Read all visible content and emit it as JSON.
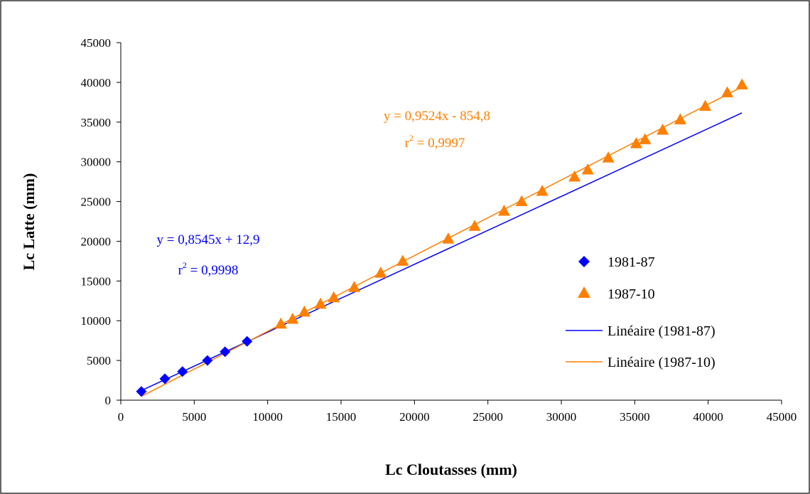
{
  "chart_data": {
    "type": "scatter",
    "xlabel": "Lc Cloutasses (mm)",
    "ylabel": "Lc Latte (mm)",
    "xlim": [
      0,
      45000
    ],
    "ylim": [
      0,
      45000
    ],
    "xticks": [
      "0",
      "5000",
      "10000",
      "15000",
      "20000",
      "25000",
      "30000",
      "35000",
      "40000",
      "45000"
    ],
    "yticks": [
      "0",
      "5000",
      "10000",
      "15000",
      "20000",
      "25000",
      "30000",
      "35000",
      "40000",
      "45000"
    ],
    "grid": false,
    "legend_position": "right",
    "series": [
      {
        "name": "1981-87",
        "marker": "diamond",
        "color": "#0000FF",
        "x": [
          1400,
          3000,
          4200,
          5900,
          7100,
          8600
        ],
        "y": [
          1100,
          2700,
          3600,
          5000,
          6100,
          7400
        ]
      },
      {
        "name": "1987-10",
        "marker": "triangle",
        "color": "#FF7F00",
        "x": [
          10900,
          11700,
          12500,
          13600,
          14500,
          15900,
          17700,
          19200,
          22300,
          24100,
          26100,
          27300,
          28700,
          30900,
          31800,
          33200,
          35100,
          35700,
          36900,
          38100,
          39800,
          41300,
          42300
        ],
        "y": [
          9600,
          10200,
          11100,
          12100,
          12900,
          14200,
          16000,
          17500,
          20300,
          21900,
          23800,
          25000,
          26300,
          28100,
          29000,
          30500,
          32300,
          32800,
          34000,
          35300,
          37000,
          38700,
          39700
        ]
      }
    ],
    "trendlines": [
      {
        "name": "Linéaire (1981-87)",
        "color": "#0000FF",
        "slope": 0.8545,
        "intercept": 12.9,
        "x_range": [
          1400,
          42300
        ],
        "equation": "y = 0,8545x + 12,9",
        "r2_label": "r",
        "r2_sup": "2",
        "r2_value": " = 0,9998"
      },
      {
        "name": "Linéaire (1987-10)",
        "color": "#FF7F00",
        "slope": 0.9524,
        "intercept": -854.8,
        "x_range": [
          1400,
          42300
        ],
        "equation": "y = 0,9524x - 854,8",
        "r2_label": "r",
        "r2_sup": "2",
        "r2_value": " = 0,9997"
      }
    ]
  }
}
